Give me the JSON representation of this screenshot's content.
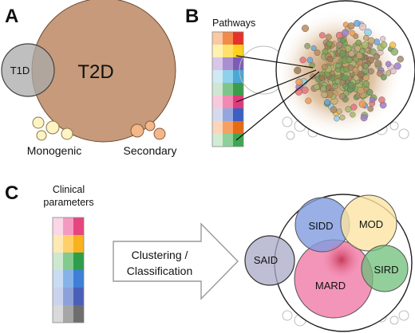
{
  "panels": {
    "a": {
      "letter": "A",
      "big_circle_label": "T2D",
      "small_circle_label": "T1D",
      "monogenic_label": "Monogenic",
      "secondary_label": "Secondary",
      "colors": {
        "t2d": "#c69a7a",
        "t1d": "#a9a9a9",
        "monogenic": "#fff3c4",
        "secondary": "#f2b88a"
      }
    },
    "b": {
      "letter": "B",
      "pathways_label": "Pathways",
      "heatmap_colors": [
        [
          "#f8c9a2",
          "#f28a4a",
          "#e8312a"
        ],
        [
          "#fff2b0",
          "#ffe16b",
          "#ffd21f"
        ],
        [
          "#d8c7ea",
          "#a98fd0",
          "#7d5cb8"
        ],
        [
          "#cfeaf4",
          "#8fd0ea",
          "#4aa7d6"
        ],
        [
          "#cfe6d2",
          "#7fc58b",
          "#3b9c4c"
        ],
        [
          "#f8c9dc",
          "#f08ab2",
          "#e03a7d"
        ],
        [
          "#d5dbef",
          "#95a6dc",
          "#3b5fc2"
        ],
        [
          "#fbd6b8",
          "#f6a062",
          "#e86a14"
        ],
        [
          "#d2ecd4",
          "#8fd09a",
          "#3fa752"
        ]
      ]
    },
    "c": {
      "letter": "C",
      "clinical_label_line1": "Clinical",
      "clinical_label_line2": "parameters",
      "arrow_label_line1": "Clustering /",
      "arrow_label_line2": "Classification",
      "clusters": [
        {
          "label": "SIDD",
          "color": "#7f9be0"
        },
        {
          "label": "MOD",
          "color": "#fbe3a2"
        },
        {
          "label": "SAID",
          "color": "#a8a8c6"
        },
        {
          "label": "MARD",
          "color": "#f07aa6"
        },
        {
          "label": "SIRD",
          "color": "#6fbf7a"
        }
      ],
      "heatmap_colors": [
        [
          "#fbd6e6",
          "#f49ac1",
          "#e6457f"
        ],
        [
          "#ffe9b3",
          "#ffd06a",
          "#f7b21e"
        ],
        [
          "#cde8cf",
          "#84c98e",
          "#2e9e4a"
        ],
        [
          "#c9dcf4",
          "#86b2e8",
          "#3f7fd8"
        ],
        [
          "#c9d3ee",
          "#8ea0d8",
          "#4a60b8"
        ],
        [
          "#d9d9d9",
          "#a6a6a6",
          "#6e6e6e"
        ]
      ]
    }
  }
}
